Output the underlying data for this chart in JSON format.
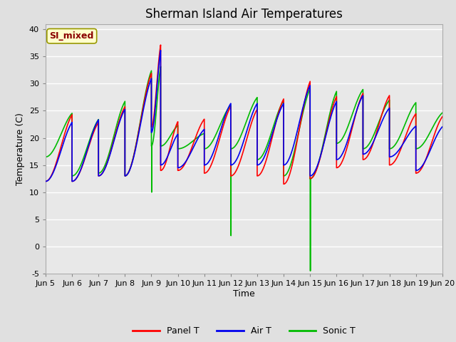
{
  "title": "Sherman Island Air Temperatures",
  "xlabel": "Time",
  "ylabel": "Temperature (C)",
  "ylim": [
    -5,
    41
  ],
  "xlim": [
    0,
    15
  ],
  "yticks": [
    -5,
    0,
    5,
    10,
    15,
    20,
    25,
    30,
    35,
    40
  ],
  "xtick_labels": [
    "Jun 5",
    "Jun 6",
    "Jun 7",
    "Jun 8",
    "Jun 9",
    "Jun 10",
    "Jun 11",
    "Jun 12",
    "Jun 13",
    "Jun 14",
    "Jun 15",
    "Jun 16",
    "Jun 17",
    "Jun 18",
    "Jun 19",
    "Jun 20"
  ],
  "panel_color": "#FF0000",
  "air_color": "#0000EE",
  "sonic_color": "#00BB00",
  "fig_bg": "#E0E0E0",
  "plot_bg": "#E8E8E8",
  "grid_color": "#FFFFFF",
  "annotation_text": "SI_mixed",
  "annotation_color": "#8B0000",
  "annotation_bg": "#FFFFCC",
  "annotation_edge": "#999900",
  "legend_entries": [
    "Panel T",
    "Air T",
    "Sonic T"
  ],
  "title_fontsize": 12,
  "axis_label_fontsize": 9,
  "tick_fontsize": 8,
  "linewidth": 1.2
}
